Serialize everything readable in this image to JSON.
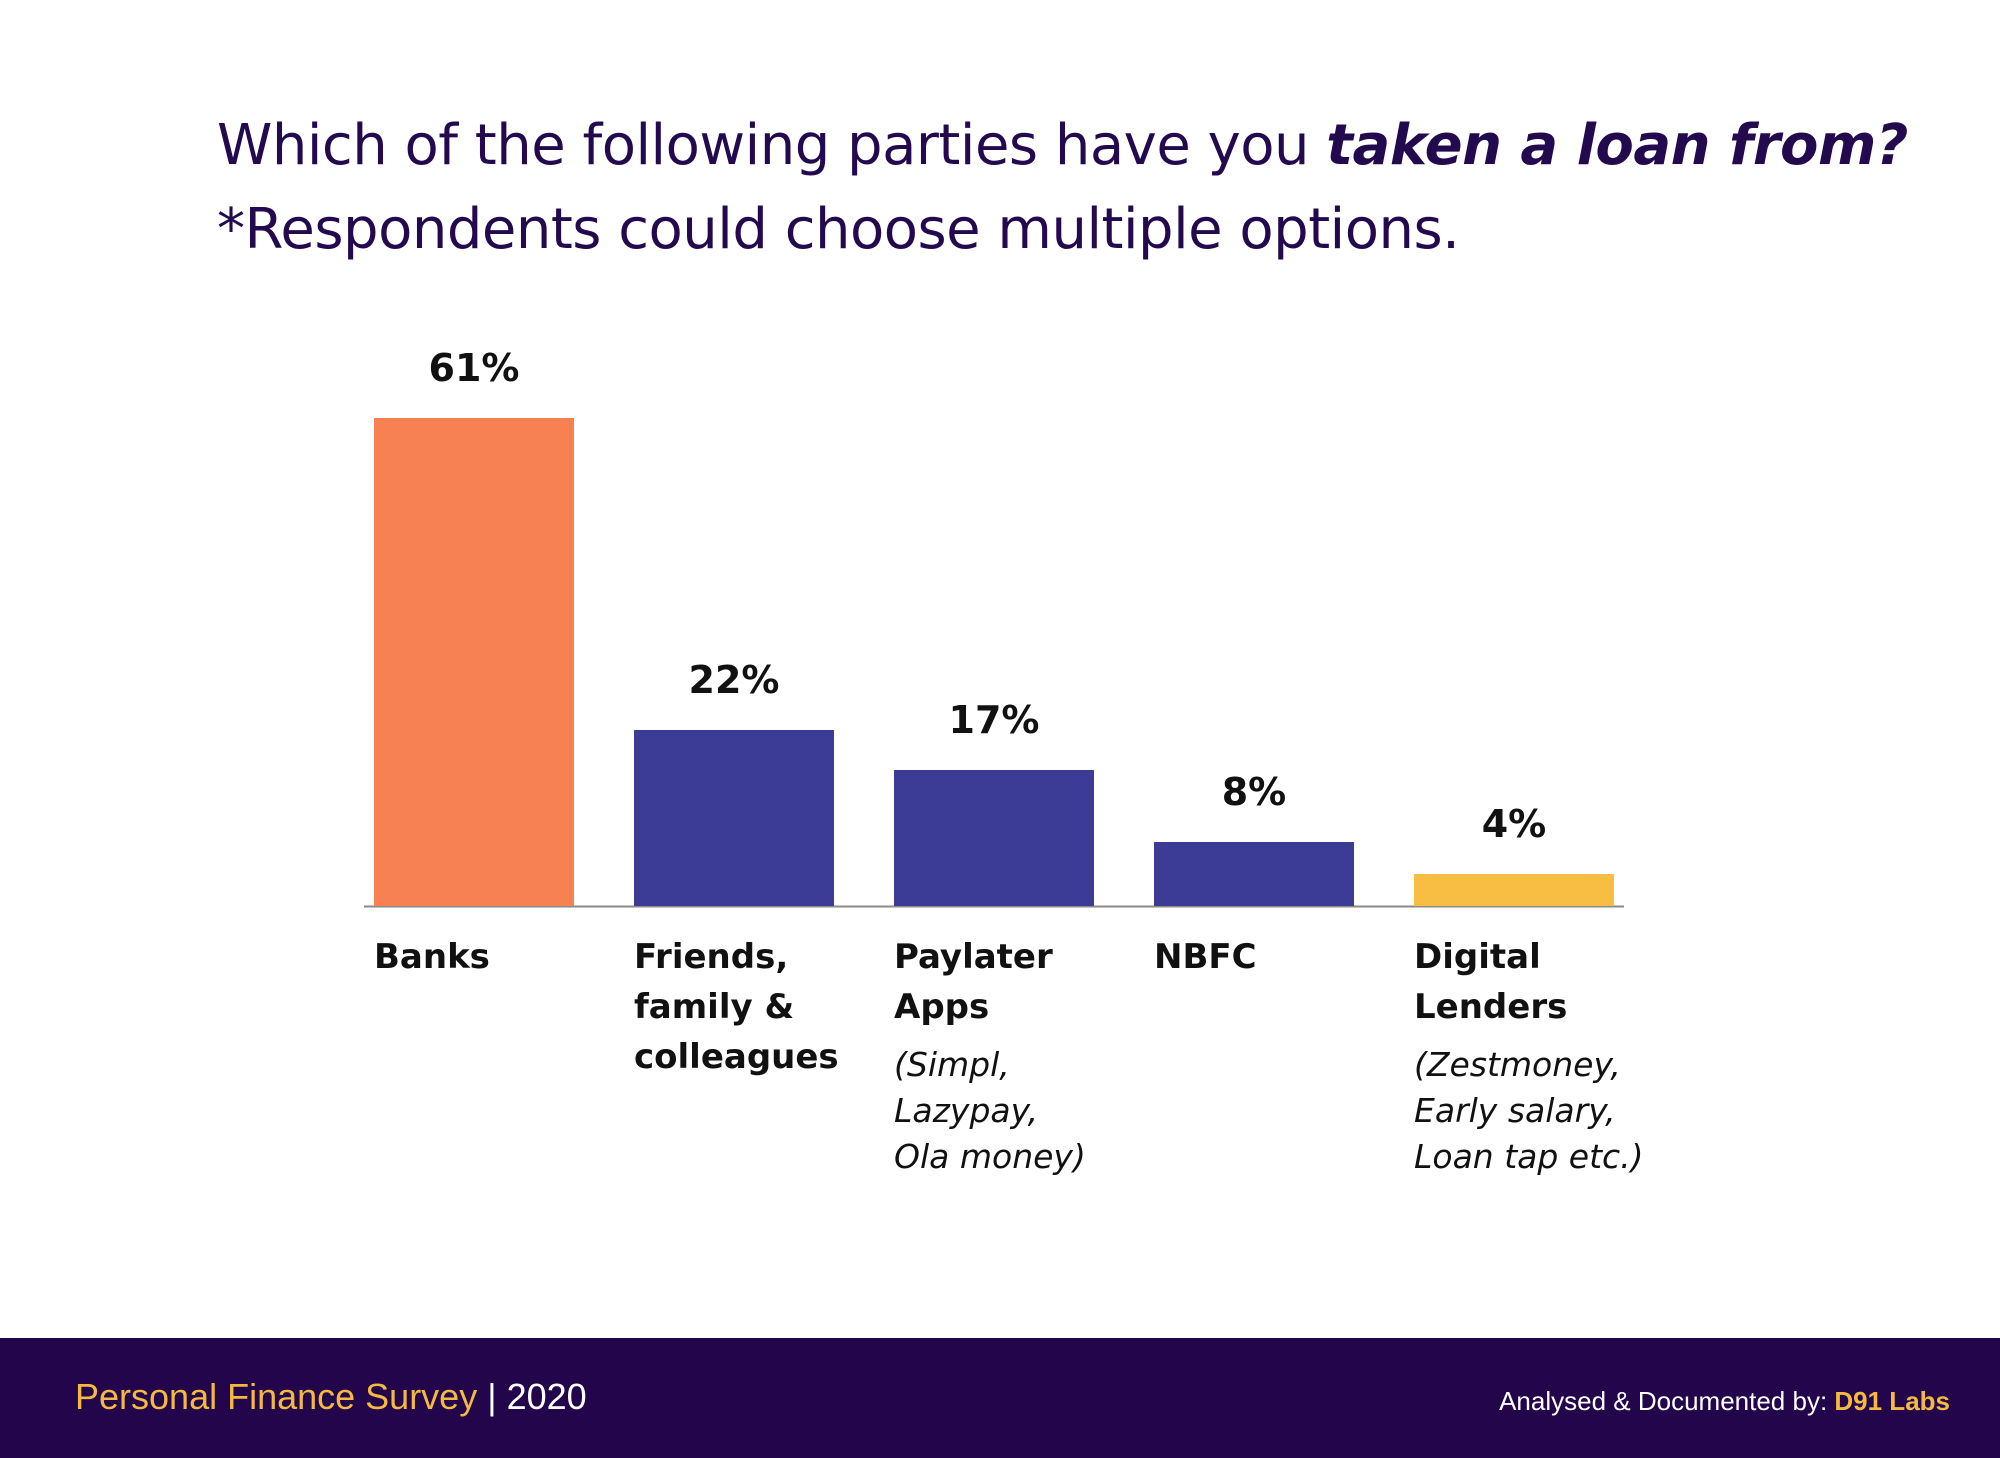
{
  "header": {
    "question_prefix": "Which of the following parties have you ",
    "question_emphasis": "taken a loan from?",
    "note": "*Respondents could choose multiple options."
  },
  "chart_data": {
    "type": "bar",
    "title": "",
    "xlabel": "",
    "ylabel": "",
    "ylim": [
      0,
      61
    ],
    "grid": false,
    "categories": [
      "Banks",
      "Friends, family & colleagues",
      "Paylater Apps",
      "NBFC",
      "Digital Lenders"
    ],
    "values": [
      61,
      22,
      17,
      8,
      4
    ],
    "data_labels": [
      "61%",
      "22%",
      "17%",
      "8%",
      "4%"
    ],
    "colors": [
      "#f78152",
      "#3c3c96",
      "#3c3c96",
      "#3c3c96",
      "#f8bd43"
    ],
    "label_lines": [
      [
        "Banks"
      ],
      [
        "Friends,",
        "family &",
        "colleagues"
      ],
      [
        "Paylater",
        "Apps"
      ],
      [
        "NBFC"
      ],
      [
        "Digital",
        "Lenders"
      ]
    ],
    "notes": [
      "",
      "",
      "(Simpl, Lazypay, Ola money)",
      "",
      "(Zestmoney, Early salary, Loan tap etc.)"
    ],
    "note_lines": [
      [],
      [],
      [
        "(Simpl,",
        "Lazypay,",
        "Ola money)"
      ],
      [],
      [
        "(Zestmoney,",
        "Early salary,",
        "Loan tap etc.)"
      ]
    ]
  },
  "footer": {
    "survey": "Personal Finance Survey",
    "separator": "|",
    "year": "2020",
    "credit_prefix": "Analysed & Documented by: ",
    "credit_brand": "D91 Labs"
  }
}
